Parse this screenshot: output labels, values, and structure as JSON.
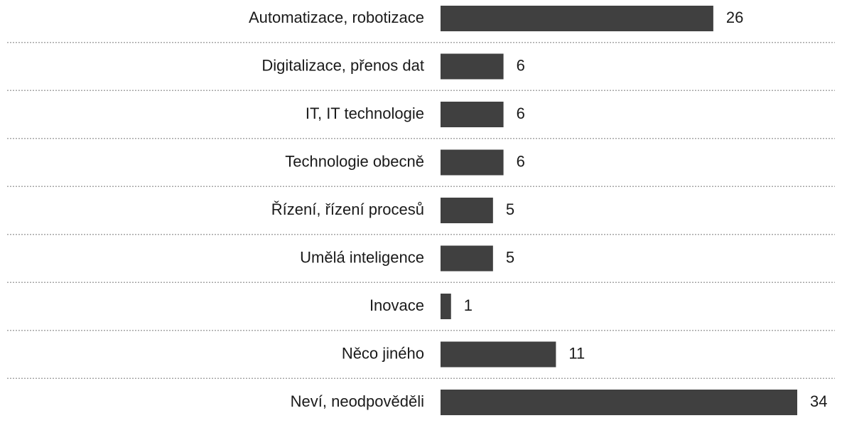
{
  "chart_data": {
    "type": "barh",
    "categories": [
      "Automatizace, robotizace",
      "Digitalizace, přenos dat",
      "IT, IT technologie",
      "Technologie obecně",
      "Řízení, řízení procesů",
      "Umělá inteligence",
      "Inovace",
      "Něco jiného",
      "Neví, neodpověděli"
    ],
    "values": [
      26,
      6,
      6,
      6,
      5,
      5,
      1,
      11,
      34
    ],
    "color": "#404040",
    "grid": true
  }
}
